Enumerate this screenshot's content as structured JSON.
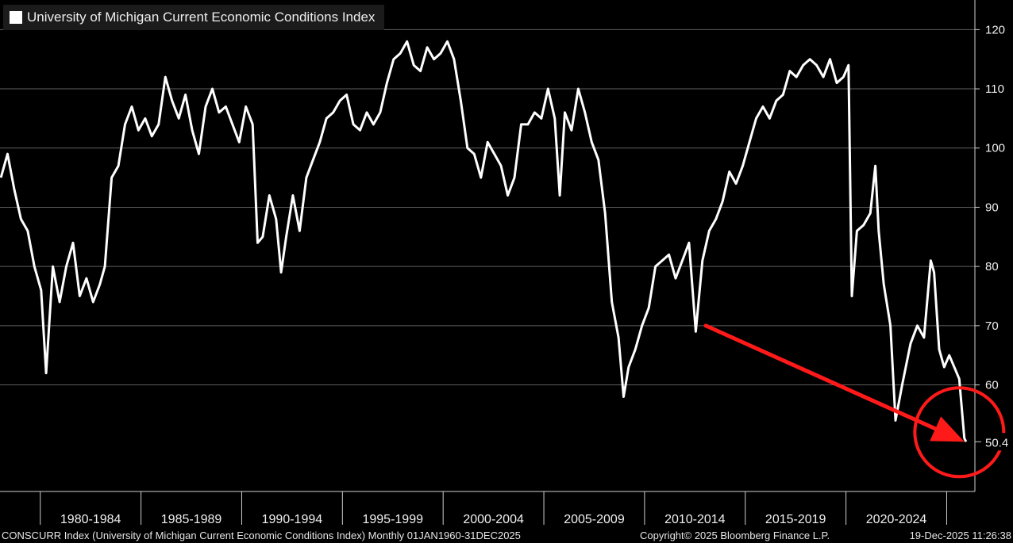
{
  "chart_data": {
    "type": "line",
    "title": "University of Michigan Current Economic Conditions Index",
    "series": [
      {
        "name": "University of Michigan Current Economic Conditions Index",
        "color": "#ffffff",
        "points": [
          [
            "1978-01",
            95
          ],
          [
            "1978-05",
            99
          ],
          [
            "1978-09",
            93
          ],
          [
            "1979-01",
            88
          ],
          [
            "1979-05",
            86
          ],
          [
            "1979-09",
            80
          ],
          [
            "1980-01",
            76
          ],
          [
            "1980-04",
            62
          ],
          [
            "1980-08",
            80
          ],
          [
            "1980-12",
            74
          ],
          [
            "1981-04",
            80
          ],
          [
            "1981-08",
            84
          ],
          [
            "1981-12",
            75
          ],
          [
            "1982-04",
            78
          ],
          [
            "1982-08",
            74
          ],
          [
            "1982-12",
            77
          ],
          [
            "1983-03",
            80
          ],
          [
            "1983-07",
            95
          ],
          [
            "1983-11",
            97
          ],
          [
            "1984-03",
            104
          ],
          [
            "1984-07",
            107
          ],
          [
            "1984-11",
            103
          ],
          [
            "1985-03",
            105
          ],
          [
            "1985-07",
            102
          ],
          [
            "1985-11",
            104
          ],
          [
            "1986-03",
            112
          ],
          [
            "1986-07",
            108
          ],
          [
            "1986-11",
            105
          ],
          [
            "1987-03",
            109
          ],
          [
            "1987-07",
            103
          ],
          [
            "1987-11",
            99
          ],
          [
            "1988-03",
            107
          ],
          [
            "1988-07",
            110
          ],
          [
            "1988-11",
            106
          ],
          [
            "1989-03",
            107
          ],
          [
            "1989-07",
            104
          ],
          [
            "1989-11",
            101
          ],
          [
            "1990-03",
            107
          ],
          [
            "1990-07",
            104
          ],
          [
            "1990-10",
            84
          ],
          [
            "1991-01",
            85
          ],
          [
            "1991-05",
            92
          ],
          [
            "1991-09",
            88
          ],
          [
            "1991-12",
            79
          ],
          [
            "1992-03",
            85
          ],
          [
            "1992-07",
            92
          ],
          [
            "1992-11",
            86
          ],
          [
            "1993-03",
            95
          ],
          [
            "1993-07",
            98
          ],
          [
            "1993-11",
            101
          ],
          [
            "1994-03",
            105
          ],
          [
            "1994-07",
            106
          ],
          [
            "1994-11",
            108
          ],
          [
            "1995-03",
            109
          ],
          [
            "1995-07",
            104
          ],
          [
            "1995-11",
            103
          ],
          [
            "1996-03",
            106
          ],
          [
            "1996-07",
            104
          ],
          [
            "1996-11",
            106
          ],
          [
            "1997-03",
            111
          ],
          [
            "1997-07",
            115
          ],
          [
            "1997-11",
            116
          ],
          [
            "1998-03",
            118
          ],
          [
            "1998-07",
            114
          ],
          [
            "1998-11",
            113
          ],
          [
            "1999-03",
            117
          ],
          [
            "1999-07",
            115
          ],
          [
            "1999-11",
            116
          ],
          [
            "2000-03",
            118
          ],
          [
            "2000-07",
            115
          ],
          [
            "2000-11",
            108
          ],
          [
            "2001-03",
            100
          ],
          [
            "2001-07",
            99
          ],
          [
            "2001-11",
            95
          ],
          [
            "2002-03",
            101
          ],
          [
            "2002-07",
            99
          ],
          [
            "2002-11",
            97
          ],
          [
            "2003-03",
            92
          ],
          [
            "2003-07",
            95
          ],
          [
            "2003-11",
            104
          ],
          [
            "2004-03",
            104
          ],
          [
            "2004-07",
            106
          ],
          [
            "2004-11",
            105
          ],
          [
            "2005-03",
            110
          ],
          [
            "2005-07",
            105
          ],
          [
            "2005-10",
            92
          ],
          [
            "2006-01",
            106
          ],
          [
            "2006-05",
            103
          ],
          [
            "2006-09",
            110
          ],
          [
            "2007-01",
            106
          ],
          [
            "2007-05",
            101
          ],
          [
            "2007-09",
            98
          ],
          [
            "2008-01",
            89
          ],
          [
            "2008-05",
            74
          ],
          [
            "2008-09",
            68
          ],
          [
            "2008-12",
            58
          ],
          [
            "2009-03",
            63
          ],
          [
            "2009-07",
            66
          ],
          [
            "2009-11",
            70
          ],
          [
            "2010-03",
            73
          ],
          [
            "2010-07",
            80
          ],
          [
            "2010-11",
            81
          ],
          [
            "2011-03",
            82
          ],
          [
            "2011-07",
            78
          ],
          [
            "2011-11",
            81
          ],
          [
            "2012-03",
            84
          ],
          [
            "2012-07",
            69
          ],
          [
            "2012-11",
            81
          ],
          [
            "2013-03",
            86
          ],
          [
            "2013-07",
            88
          ],
          [
            "2013-11",
            91
          ],
          [
            "2014-03",
            96
          ],
          [
            "2014-07",
            94
          ],
          [
            "2014-11",
            97
          ],
          [
            "2015-03",
            101
          ],
          [
            "2015-07",
            105
          ],
          [
            "2015-11",
            107
          ],
          [
            "2016-03",
            105
          ],
          [
            "2016-07",
            108
          ],
          [
            "2016-11",
            109
          ],
          [
            "2017-03",
            113
          ],
          [
            "2017-07",
            112
          ],
          [
            "2017-11",
            114
          ],
          [
            "2018-03",
            115
          ],
          [
            "2018-07",
            114
          ],
          [
            "2018-11",
            112
          ],
          [
            "2019-03",
            115
          ],
          [
            "2019-07",
            111
          ],
          [
            "2019-11",
            112
          ],
          [
            "2020-02",
            114
          ],
          [
            "2020-04",
            75
          ],
          [
            "2020-07",
            86
          ],
          [
            "2020-11",
            87
          ],
          [
            "2021-03",
            89
          ],
          [
            "2021-06",
            97
          ],
          [
            "2021-08",
            86
          ],
          [
            "2021-11",
            77
          ],
          [
            "2022-03",
            70
          ],
          [
            "2022-06",
            54
          ],
          [
            "2022-10",
            60
          ],
          [
            "2023-03",
            67
          ],
          [
            "2023-07",
            70
          ],
          [
            "2023-11",
            68
          ],
          [
            "2024-03",
            81
          ],
          [
            "2024-05",
            79
          ],
          [
            "2024-08",
            66
          ],
          [
            "2024-11",
            63
          ],
          [
            "2025-02",
            65
          ],
          [
            "2025-05",
            63
          ],
          [
            "2025-08",
            61
          ],
          [
            "2025-11",
            51
          ],
          [
            "2025-12",
            50.4
          ]
        ]
      }
    ],
    "ylim": [
      42,
      125
    ],
    "yticks": [
      "120",
      "110",
      "100",
      "90",
      "80",
      "70",
      "60"
    ],
    "last_value_label": "50.4",
    "x_period_labels": [
      "1980-1984",
      "1985-1989",
      "1990-1994",
      "1995-1999",
      "2000-2004",
      "2005-2009",
      "2010-2014",
      "2015-2019",
      "2020-2024"
    ],
    "grid": true,
    "legend_placement": "top-left",
    "annotations": [
      {
        "kind": "arrow",
        "color": "#ff1a1a",
        "from": [
          "2013-01",
          70
        ],
        "to": [
          "2025-11",
          50.4
        ]
      },
      {
        "kind": "circle",
        "color": "#ff1a1a",
        "around": [
          "2025-08",
          52
        ]
      }
    ]
  },
  "footer": {
    "ticker_text": "CONSCURR Index (University of Michigan Current Economic Conditions Index) Monthly 01JAN1960-31DEC2025",
    "copyright": "Copyright© 2025 Bloomberg Finance L.P.",
    "timestamp": "19-Dec-2025 11:26:38"
  }
}
